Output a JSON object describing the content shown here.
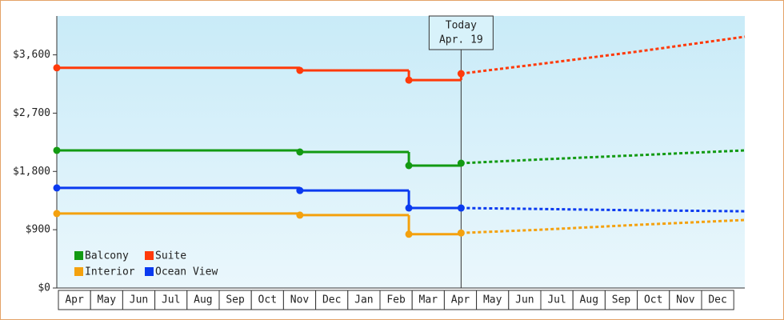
{
  "chart_data": {
    "type": "step-line",
    "annotation": {
      "lines": [
        "Today",
        "Apr. 19"
      ],
      "x": 12.54
    },
    "categories": [
      "Apr",
      "May",
      "Jun",
      "Jul",
      "Aug",
      "Sep",
      "Oct",
      "Nov",
      "Dec",
      "Jan",
      "Feb",
      "Mar",
      "Apr",
      "May",
      "Jun",
      "Jul",
      "Aug",
      "Sep",
      "Oct",
      "Nov",
      "Dec"
    ],
    "xlim": [
      0,
      21.34
    ],
    "ylim": [
      0,
      4200
    ],
    "yticks": [
      {
        "value": 0,
        "label": "$0"
      },
      {
        "value": 900,
        "label": "$900"
      },
      {
        "value": 1800,
        "label": "$1,800"
      },
      {
        "value": 2700,
        "label": "$2,700"
      },
      {
        "value": 3600,
        "label": "$3,600"
      }
    ],
    "series": [
      {
        "name": "Balcony",
        "color": "#129a12",
        "x": [
          0,
          7.54,
          10.92,
          12.54
        ],
        "values": [
          2125,
          2100,
          1890,
          1927
        ],
        "forecast_x": [
          12.54,
          15,
          18,
          21.34
        ],
        "forecast_values": [
          1927,
          1985,
          2050,
          2125
        ]
      },
      {
        "name": "Suite",
        "color": "#ff3a0a",
        "x": [
          0,
          7.54,
          10.92,
          12.54
        ],
        "values": [
          3400,
          3360,
          3210,
          3310
        ],
        "forecast_x": [
          12.54,
          15,
          18,
          21.34
        ],
        "forecast_values": [
          3310,
          3460,
          3650,
          3880
        ]
      },
      {
        "name": "Interior",
        "color": "#f4a10e",
        "x": [
          0,
          7.54,
          10.92,
          12.54
        ],
        "values": [
          1150,
          1125,
          830,
          850
        ],
        "forecast_x": [
          12.54,
          15,
          18,
          21.34
        ],
        "forecast_values": [
          850,
          900,
          975,
          1050
        ]
      },
      {
        "name": "Ocean View",
        "color": "#0a3af0",
        "x": [
          0,
          7.54,
          10.92,
          12.54
        ],
        "values": [
          1545,
          1505,
          1235,
          1235
        ],
        "forecast_x": [
          12.54,
          15,
          18,
          21.34
        ],
        "forecast_values": [
          1235,
          1220,
          1200,
          1185
        ]
      }
    ]
  }
}
